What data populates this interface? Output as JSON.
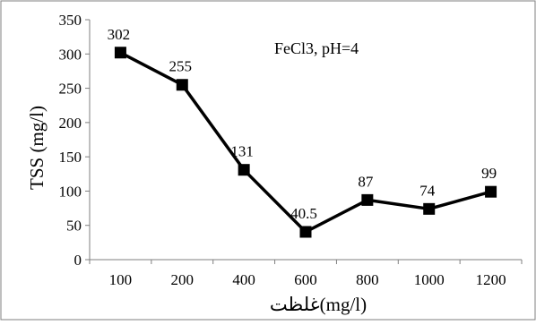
{
  "chart_data": {
    "type": "line",
    "title": "",
    "annotation": "FeCl3, pH=4",
    "xlabel": "غلظت(mg/l)",
    "ylabel": "TSS (mg/l)",
    "categories": [
      "100",
      "200",
      "400",
      "600",
      "800",
      "1000",
      "1200"
    ],
    "series": [
      {
        "values": [
          302,
          255,
          131,
          40.5,
          87,
          74,
          99
        ],
        "data_labels": [
          "302",
          "255",
          "131",
          "40.5",
          "87",
          "74",
          "99"
        ],
        "color": "#000000",
        "marker": "square"
      }
    ],
    "ylim": [
      0,
      350
    ],
    "yticks": [
      "0",
      "50",
      "100",
      "150",
      "200",
      "250",
      "300",
      "350"
    ],
    "grid": false,
    "legend": "none",
    "border": true
  }
}
